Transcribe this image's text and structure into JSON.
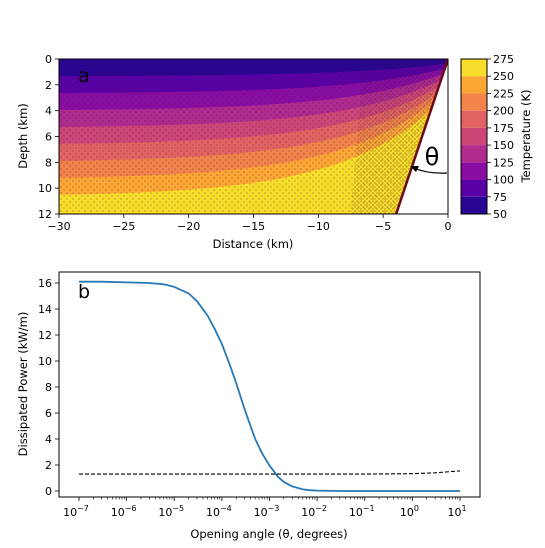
{
  "chart_data": [
    {
      "type": "heatmap",
      "panel_label": "a",
      "xlabel": "Distance (km)",
      "ylabel": "Depth (km)",
      "xlim": [
        -30,
        0
      ],
      "ylim": [
        12,
        0
      ],
      "x_ticks": [
        "−30",
        "−25",
        "−20",
        "−15",
        "−10",
        "−5",
        "0"
      ],
      "y_ticks": [
        "0",
        "2",
        "4",
        "6",
        "8",
        "10",
        "12"
      ],
      "angle_annotation": "θ",
      "colorbar": {
        "label": "Temperature (K)",
        "levels": [
          50,
          75,
          100,
          125,
          150,
          175,
          200,
          225,
          250,
          275
        ],
        "tick_labels": [
          "50",
          "75",
          "100",
          "125",
          "150",
          "175",
          "200",
          "225",
          "250",
          "275"
        ],
        "colors": [
          "#2a0593",
          "#5a01a5",
          "#8a0da3",
          "#b02b8f",
          "#cc4778",
          "#e16462",
          "#f2844b",
          "#fca636",
          "#f8dd2b"
        ]
      },
      "surface_temperature_K": 50,
      "bottom_temperature_K": 275,
      "wedge_color": "#6b0a16"
    },
    {
      "type": "line",
      "panel_label": "b",
      "xlabel": "Opening angle (θ, degrees)",
      "ylabel": "Dissipated Power (kW/m)",
      "xscale": "log",
      "xlim": [
        1e-07,
        10
      ],
      "ylim": [
        0,
        16.5
      ],
      "x_ticks": [
        {
          "value": 1e-07,
          "base": "10",
          "exp": "−7"
        },
        {
          "value": 1e-06,
          "base": "10",
          "exp": "−6"
        },
        {
          "value": 1e-05,
          "base": "10",
          "exp": "−5"
        },
        {
          "value": 0.0001,
          "base": "10",
          "exp": "−4"
        },
        {
          "value": 0.001,
          "base": "10",
          "exp": "−3"
        },
        {
          "value": 0.01,
          "base": "10",
          "exp": "−2"
        },
        {
          "value": 0.1,
          "base": "10",
          "exp": "−1"
        },
        {
          "value": 1,
          "base": "10",
          "exp": "0"
        },
        {
          "value": 10,
          "base": "10",
          "exp": "1"
        }
      ],
      "y_ticks": [
        "0",
        "2",
        "4",
        "6",
        "8",
        "10",
        "12",
        "14",
        "16"
      ],
      "series": [
        {
          "style": "solid",
          "color": "#2878b5",
          "x": [
            1e-07,
            3e-07,
            1e-06,
            3e-06,
            6e-06,
            1e-05,
            2e-05,
            3e-05,
            5e-05,
            7e-05,
            0.0001,
            0.00015,
            0.0002,
            0.0003,
            0.0004,
            0.0005,
            0.0007,
            0.001,
            0.0015,
            0.002,
            0.003,
            0.005,
            0.007,
            0.01,
            0.03,
            0.1,
            1,
            10
          ],
          "y": [
            16.1,
            16.1,
            16.05,
            16.0,
            15.9,
            15.7,
            15.2,
            14.6,
            13.5,
            12.5,
            11.3,
            9.6,
            8.3,
            6.3,
            5.0,
            4.0,
            2.9,
            1.95,
            1.1,
            0.7,
            0.35,
            0.12,
            0.06,
            0.03,
            0.0,
            0.0,
            0.0,
            0.0
          ]
        },
        {
          "style": "dashed",
          "color": "#000000",
          "x": [
            1e-07,
            1e-06,
            1e-05,
            0.0001,
            0.001,
            0.01,
            0.1,
            1,
            3,
            10
          ],
          "y": [
            1.3,
            1.3,
            1.3,
            1.3,
            1.3,
            1.3,
            1.3,
            1.33,
            1.4,
            1.55
          ]
        }
      ]
    }
  ]
}
